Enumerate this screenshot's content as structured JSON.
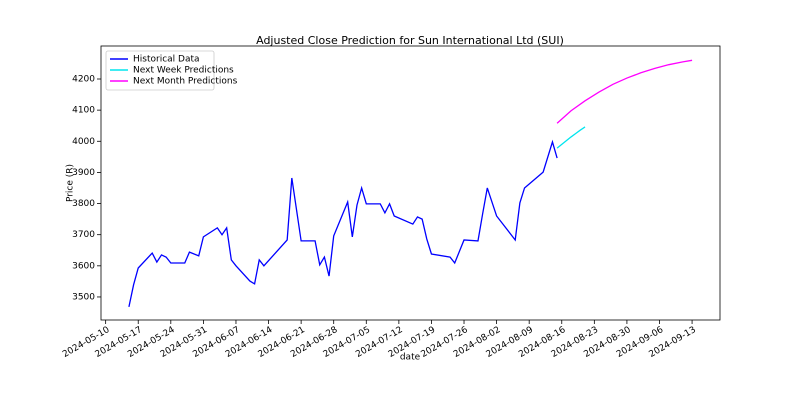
{
  "chart_data": {
    "type": "line",
    "title": "Adjusted Close Prediction for Sun International Ltd (SUI)",
    "xlabel": "date",
    "ylabel": "Price (R)",
    "xlim": [
      "2024-05-09",
      "2024-09-19"
    ],
    "xticks": [
      "2024-05-10",
      "2024-05-17",
      "2024-05-24",
      "2024-05-31",
      "2024-06-07",
      "2024-06-14",
      "2024-06-21",
      "2024-06-28",
      "2024-07-05",
      "2024-07-12",
      "2024-07-19",
      "2024-07-26",
      "2024-08-02",
      "2024-08-09",
      "2024-08-16",
      "2024-08-23",
      "2024-08-30",
      "2024-09-06",
      "2024-09-13"
    ],
    "ylim": [
      3426,
      4306
    ],
    "yticks": [
      3500,
      3600,
      3700,
      3800,
      3900,
      4000,
      4100,
      4200
    ],
    "grid": false,
    "legend": "upper left",
    "series": [
      {
        "name": "Historical Data",
        "color": "#0000ff",
        "x": [
          "2024-05-15",
          "2024-05-16",
          "2024-05-17",
          "2024-05-20",
          "2024-05-21",
          "2024-05-22",
          "2024-05-23",
          "2024-05-24",
          "2024-05-27",
          "2024-05-28",
          "2024-05-30",
          "2024-05-31",
          "2024-06-03",
          "2024-06-04",
          "2024-06-05",
          "2024-06-06",
          "2024-06-07",
          "2024-06-10",
          "2024-06-11",
          "2024-06-12",
          "2024-06-13",
          "2024-06-18",
          "2024-06-19",
          "2024-06-21",
          "2024-06-24",
          "2024-06-25",
          "2024-06-26",
          "2024-06-27",
          "2024-06-28",
          "2024-07-01",
          "2024-07-02",
          "2024-07-03",
          "2024-07-04",
          "2024-07-05",
          "2024-07-08",
          "2024-07-09",
          "2024-07-10",
          "2024-07-11",
          "2024-07-15",
          "2024-07-16",
          "2024-07-17",
          "2024-07-18",
          "2024-07-19",
          "2024-07-23",
          "2024-07-24",
          "2024-07-26",
          "2024-07-29",
          "2024-07-30",
          "2024-07-31",
          "2024-08-02",
          "2024-08-06",
          "2024-08-07",
          "2024-08-08",
          "2024-08-12",
          "2024-08-14",
          "2024-08-15"
        ],
        "values": [
          3468,
          3539,
          3593,
          3641,
          3612,
          3635,
          3628,
          3609,
          3609,
          3644,
          3632,
          3693,
          3722,
          3700,
          3722,
          3619,
          3600,
          3551,
          3542,
          3619,
          3600,
          3683,
          3882,
          3680,
          3680,
          3603,
          3628,
          3567,
          3696,
          3805,
          3693,
          3795,
          3850,
          3799,
          3799,
          3770,
          3799,
          3760,
          3734,
          3757,
          3750,
          3686,
          3638,
          3628,
          3609,
          3683,
          3680,
          3767,
          3850,
          3760,
          3683,
          3802,
          3850,
          3901,
          3998,
          3946
        ]
      },
      {
        "name": "Next Week Predictions",
        "color": "#00e5ee",
        "x": [
          "2024-08-15",
          "2024-08-16",
          "2024-08-17",
          "2024-08-18",
          "2024-08-19",
          "2024-08-20",
          "2024-08-21"
        ],
        "values": [
          3978,
          3990,
          4002,
          4014,
          4025,
          4036,
          4046
        ]
      },
      {
        "name": "Next Month Predictions",
        "color": "#ff00ff",
        "x": [
          "2024-08-15",
          "2024-08-18",
          "2024-08-21",
          "2024-08-24",
          "2024-08-27",
          "2024-08-30",
          "2024-09-02",
          "2024-09-05",
          "2024-09-08",
          "2024-09-11",
          "2024-09-13"
        ],
        "values": [
          4058,
          4098,
          4130,
          4158,
          4183,
          4203,
          4220,
          4234,
          4246,
          4255,
          4260
        ]
      }
    ]
  }
}
